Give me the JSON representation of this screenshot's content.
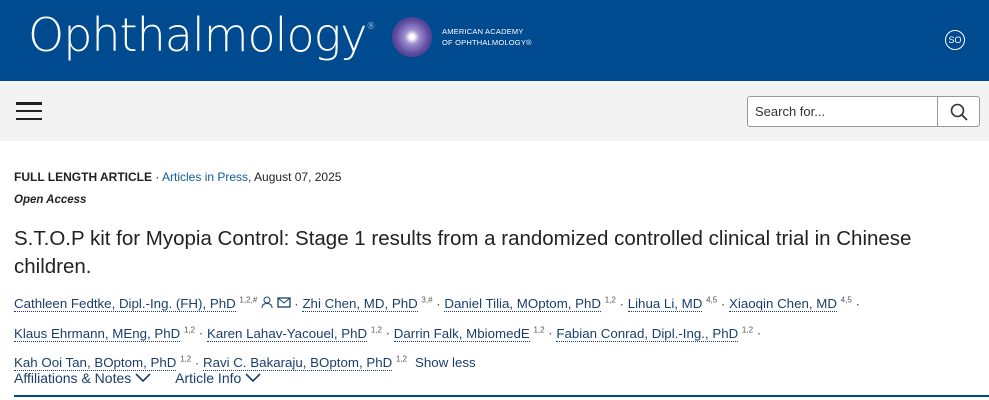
{
  "header": {
    "logo": "Ophthalmology",
    "logo_mark": "®",
    "aao_line1": "AMERICAN ACADEMY",
    "aao_line2": "OF OPHTHALMOLOGY®",
    "user_initials": "SO"
  },
  "search": {
    "placeholder": "Search for..."
  },
  "article": {
    "type": "FULL LENGTH ARTICLE",
    "section": "Articles in Press",
    "date": ", August 07, 2025",
    "access": "Open Access",
    "title": "S.T.O.P kit for Myopia Control: Stage 1 results from a randomized controlled clinical trial in Chinese children.",
    "authors": [
      {
        "name": "Cathleen Fedtke, Dipl.-Ing. (FH), PhD",
        "sup": "1,2,#"
      },
      {
        "name": "Zhi Chen, MD, PhD",
        "sup": "3,#"
      },
      {
        "name": "Daniel Tilia, MOptom, PhD",
        "sup": "1,2"
      },
      {
        "name": "Lihua Li, MD",
        "sup": "4,5"
      },
      {
        "name": "Xiaoqin Chen, MD",
        "sup": "4,5"
      },
      {
        "name": "Klaus Ehrmann, MEng, PhD",
        "sup": "1,2"
      },
      {
        "name": "Karen Lahav-Yacouel, PhD",
        "sup": "1,2"
      },
      {
        "name": "Darrin Falk, MbiomedE",
        "sup": "1,2"
      },
      {
        "name": "Fabian Conrad, Dipl.-Ing., PhD",
        "sup": "1,2"
      },
      {
        "name": "Kah Ooi Tan, BOptom, PhD",
        "sup": "1,2"
      },
      {
        "name": "Ravi C. Bakaraju, BOptom, PhD",
        "sup": "1,2"
      }
    ],
    "show_less": "Show less",
    "tabs": [
      "Affiliations & Notes",
      "Article Info"
    ]
  }
}
